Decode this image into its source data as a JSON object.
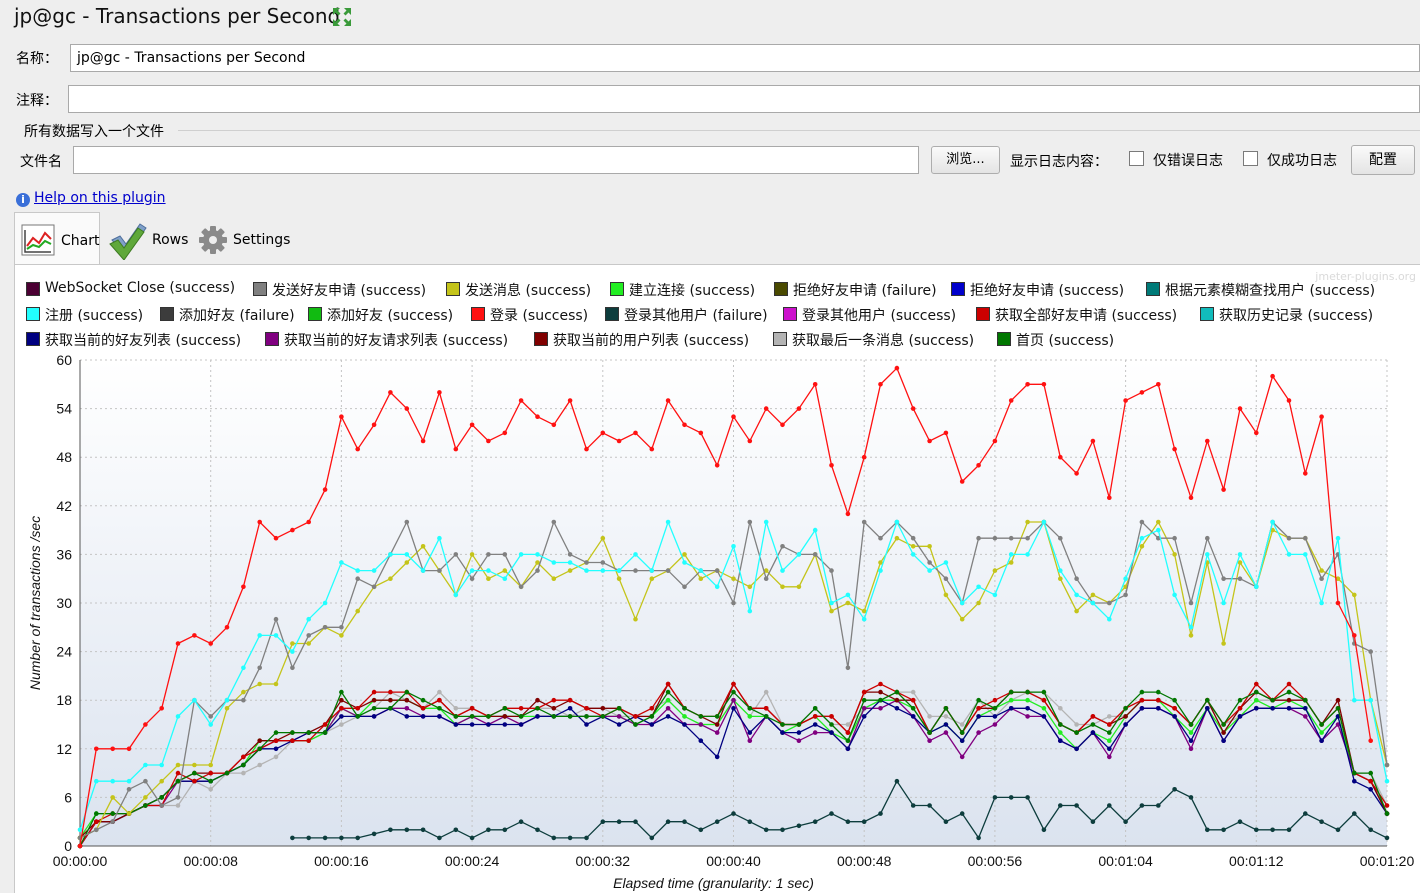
{
  "title": "jp@gc - Transactions per Second",
  "name_label": "名称：",
  "name_value": "jp@gc - Transactions per Second",
  "comment_label": "注释：",
  "comment_value": "",
  "file_group_title": "所有数据写入一个文件",
  "filename_label": "文件名",
  "filename_value": "",
  "browse_button": "浏览...",
  "log_content_label": "显示日志内容：",
  "errors_only_label": "仅错误日志",
  "success_only_label": "仅成功日志",
  "configure_button": "配置",
  "help_link": "Help on this plugin",
  "tabs": [
    {
      "label": "Chart",
      "icon": "chart-icon"
    },
    {
      "label": "Rows",
      "icon": "checkmark-icon"
    },
    {
      "label": "Settings",
      "icon": "gear-icon"
    }
  ],
  "watermark": "jmeter-plugins.org",
  "chart_data": {
    "type": "line",
    "title": "",
    "xlabel": "Elapsed time (granularity: 1 sec)",
    "ylabel": "Number of transactions /sec",
    "ylim": [
      0,
      60
    ],
    "yticks": [
      "0",
      "6",
      "12",
      "18",
      "24",
      "30",
      "36",
      "42",
      "48",
      "54",
      "60"
    ],
    "xlim": [
      0,
      80
    ],
    "xticks": [
      "00:00:00",
      "00:00:08",
      "00:00:16",
      "00:00:24",
      "00:00:32",
      "00:00:40",
      "00:00:48",
      "00:00:56",
      "00:01:04",
      "00:01:12",
      "00:01:20"
    ],
    "legend": [
      {
        "name": "WebSocket Close (success)",
        "color": "#4b0033"
      },
      {
        "name": "发送好友申请 (success)",
        "color": "#808080"
      },
      {
        "name": "发送消息 (success)",
        "color": "#c4c41a"
      },
      {
        "name": "建立连接 (success)",
        "color": "#22ee22"
      },
      {
        "name": "拒绝好友申请 (failure)",
        "color": "#4a4a00"
      },
      {
        "name": "拒绝好友申请 (success)",
        "color": "#0000cc"
      },
      {
        "name": "根据元素模糊查找用户 (success)",
        "color": "#007a78"
      },
      {
        "name": "注册 (success)",
        "color": "#22ffff"
      },
      {
        "name": "添加好友 (failure)",
        "color": "#3c3c3c"
      },
      {
        "name": "添加好友 (success)",
        "color": "#11bb11"
      },
      {
        "name": "登录 (success)",
        "color": "#ff1111"
      },
      {
        "name": "登录其他用户 (failure)",
        "color": "#0d3d3d"
      },
      {
        "name": "登录其他用户 (success)",
        "color": "#cc11cc"
      },
      {
        "name": "获取全部好友申请 (success)",
        "color": "#cc0000"
      },
      {
        "name": "获取历史记录 (success)",
        "color": "#11bbbb"
      },
      {
        "name": "获取当前的好友列表 (success)",
        "color": "#000080"
      },
      {
        "name": "获取当前的好友请求列表 (success)",
        "color": "#800080"
      },
      {
        "name": "获取当前的用户列表 (success)",
        "color": "#800000"
      },
      {
        "name": "获取最后一条消息 (success)",
        "color": "#b4b4b4"
      },
      {
        "name": "首页 (success)",
        "color": "#007700"
      }
    ],
    "series": [
      {
        "name": "登录 (success)",
        "color": "#ff1111",
        "x0": 0,
        "values": [
          0,
          12,
          12,
          12,
          15,
          17,
          25,
          26,
          25,
          27,
          32,
          40,
          38,
          39,
          40,
          44,
          53,
          49,
          52,
          56,
          54,
          50,
          56,
          49,
          52,
          50,
          51,
          55,
          53,
          52,
          55,
          49,
          51,
          50,
          51,
          49,
          55,
          52,
          51,
          47,
          53,
          50,
          54,
          52,
          54,
          57,
          47,
          41,
          48,
          57,
          59,
          54,
          50,
          51,
          45,
          47,
          50,
          55,
          57,
          57,
          48,
          46,
          50,
          43,
          55,
          56,
          57,
          49,
          43,
          50,
          44,
          54,
          51,
          58,
          55,
          46,
          53,
          30,
          26,
          13
        ]
      },
      {
        "name": "注册 (success)",
        "color": "#22ffff",
        "x0": 0,
        "values": [
          2,
          8,
          8,
          8,
          10,
          10,
          16,
          18,
          15,
          18,
          22,
          26,
          26,
          24,
          28,
          30,
          35,
          34,
          34,
          36,
          36,
          34,
          38,
          31,
          34,
          34,
          33,
          36,
          36,
          35,
          35,
          34,
          34,
          34,
          36,
          34,
          40,
          35,
          34,
          32,
          37,
          29,
          40,
          34,
          36,
          39,
          30,
          31,
          28,
          34,
          40,
          36,
          34,
          35,
          30,
          32,
          31,
          36,
          36,
          40,
          34,
          31,
          30,
          28,
          33,
          38,
          39,
          31,
          27,
          36,
          30,
          36,
          32,
          40,
          36,
          36,
          30,
          38,
          18,
          18,
          8
        ]
      },
      {
        "name": "发送好友申请 (success)",
        "color": "#808080",
        "x0": 0,
        "values": [
          1,
          2,
          3,
          7,
          8,
          5,
          6,
          18,
          16,
          18,
          18,
          22,
          28,
          22,
          26,
          27,
          27,
          33,
          32,
          36,
          40,
          34,
          34,
          36,
          33,
          36,
          36,
          32,
          34,
          40,
          36,
          35,
          35,
          34,
          34,
          34,
          34,
          32,
          34,
          34,
          30,
          40,
          33,
          37,
          36,
          36,
          34,
          22,
          40,
          38,
          40,
          38,
          35,
          33,
          30,
          38,
          38,
          38,
          38,
          40,
          38,
          33,
          30,
          30,
          31,
          40,
          38,
          38,
          30,
          38,
          33,
          33,
          32,
          40,
          38,
          38,
          33,
          36,
          25,
          24,
          10
        ]
      },
      {
        "name": "发送消息 (success)",
        "color": "#c4c41a",
        "x0": 0,
        "values": [
          1,
          2,
          6,
          4,
          6,
          8,
          10,
          10,
          10,
          17,
          19,
          20,
          20,
          25,
          25,
          27,
          26,
          29,
          32,
          33,
          35,
          37,
          34,
          31,
          36,
          33,
          34,
          32,
          35,
          33,
          34,
          35,
          38,
          33,
          28,
          33,
          34,
          36,
          33,
          34,
          33,
          32,
          34,
          32,
          32,
          36,
          29,
          30,
          29,
          35,
          38,
          37,
          37,
          31,
          28,
          30,
          34,
          35,
          40,
          40,
          33,
          29,
          31,
          30,
          32,
          37,
          40,
          36,
          26,
          35,
          25,
          35,
          32,
          39,
          38,
          38,
          34,
          33,
          31,
          18,
          10
        ]
      },
      {
        "name": "首页 (success)",
        "color": "#007700",
        "x0": 0,
        "values": [
          0,
          4,
          4,
          4,
          5,
          6,
          8,
          9,
          8,
          9,
          10,
          12,
          14,
          14,
          14,
          14,
          19,
          16,
          17,
          17,
          19,
          18,
          17,
          16,
          16,
          16,
          17,
          16,
          17,
          16,
          16,
          16,
          16,
          17,
          15,
          16,
          19,
          17,
          16,
          16,
          19,
          17,
          16,
          15,
          15,
          17,
          15,
          13,
          18,
          18,
          19,
          17,
          14,
          17,
          14,
          18,
          17,
          19,
          19,
          19,
          15,
          14,
          15,
          14,
          17,
          19,
          19,
          18,
          15,
          18,
          15,
          18,
          19,
          18,
          19,
          18,
          15,
          17,
          9,
          9,
          4
        ]
      },
      {
        "name": "获取全部好友申请 (success)",
        "color": "#cc0000",
        "x0": 0,
        "values": [
          0,
          3,
          4,
          4,
          5,
          5,
          9,
          8,
          9,
          9,
          11,
          12,
          13,
          13,
          13,
          15,
          17,
          17,
          19,
          19,
          19,
          17,
          18,
          16,
          17,
          16,
          17,
          17,
          17,
          18,
          18,
          17,
          16,
          17,
          16,
          17,
          20,
          17,
          16,
          16,
          20,
          17,
          17,
          15,
          15,
          16,
          16,
          14,
          19,
          20,
          19,
          18,
          14,
          17,
          14,
          17,
          18,
          19,
          19,
          18,
          15,
          14,
          16,
          15,
          17,
          18,
          18,
          17,
          15,
          18,
          15,
          17,
          20,
          18,
          20,
          18,
          15,
          17,
          9,
          8,
          5
        ]
      },
      {
        "name": "获取当前的用户列表 (success)",
        "color": "#800000",
        "x0": 0,
        "values": [
          1,
          3,
          3,
          4,
          5,
          6,
          8,
          9,
          9,
          9,
          11,
          13,
          13,
          14,
          14,
          15,
          18,
          17,
          18,
          18,
          18,
          17,
          18,
          16,
          17,
          16,
          16,
          16,
          18,
          17,
          18,
          17,
          17,
          17,
          16,
          16,
          20,
          17,
          16,
          15,
          20,
          17,
          17,
          15,
          15,
          16,
          16,
          14,
          19,
          19,
          18,
          18,
          14,
          17,
          14,
          17,
          17,
          19,
          19,
          18,
          15,
          14,
          16,
          15,
          16,
          18,
          18,
          17,
          15,
          18,
          14,
          17,
          19,
          18,
          18,
          18,
          15,
          18,
          9,
          8,
          4
        ]
      },
      {
        "name": "获取当前的好友列表 (success)",
        "color": "#000080",
        "x0": 0,
        "values": [
          0,
          3,
          3,
          4,
          5,
          6,
          8,
          8,
          8,
          9,
          10,
          12,
          12,
          13,
          14,
          14,
          16,
          16,
          16,
          17,
          16,
          16,
          16,
          15,
          15,
          15,
          15,
          15,
          16,
          16,
          17,
          15,
          16,
          15,
          16,
          15,
          16,
          15,
          13,
          11,
          17,
          14,
          16,
          14,
          14,
          15,
          14,
          12,
          16,
          18,
          17,
          16,
          14,
          15,
          13,
          16,
          16,
          17,
          17,
          16,
          13,
          12,
          14,
          12,
          15,
          17,
          17,
          16,
          13,
          17,
          13,
          16,
          17,
          17,
          17,
          17,
          13,
          16,
          8,
          7,
          4
        ]
      },
      {
        "name": "获取当前的好友请求列表 (success)",
        "color": "#800080",
        "x0": 0,
        "values": [
          0,
          3,
          3,
          4,
          5,
          5,
          8,
          8,
          8,
          9,
          10,
          12,
          13,
          13,
          14,
          14,
          17,
          16,
          16,
          17,
          17,
          16,
          16,
          15,
          16,
          15,
          16,
          15,
          16,
          16,
          16,
          16,
          16,
          16,
          15,
          15,
          17,
          15,
          15,
          14,
          18,
          13,
          16,
          14,
          13,
          14,
          14,
          12,
          17,
          17,
          18,
          16,
          13,
          14,
          11,
          14,
          15,
          17,
          16,
          16,
          13,
          12,
          14,
          11,
          15,
          17,
          17,
          16,
          12,
          17,
          13,
          16,
          17,
          17,
          17,
          16,
          13,
          15,
          9,
          8,
          4
        ]
      },
      {
        "name": "建立连接 (success)",
        "color": "#22ee22",
        "x0": 0,
        "values": [
          1,
          4,
          4,
          4,
          5,
          6,
          8,
          8,
          8,
          9,
          10,
          13,
          13,
          13,
          13,
          14,
          17,
          16,
          18,
          18,
          18,
          17,
          17,
          15,
          16,
          16,
          16,
          16,
          16,
          16,
          16,
          16,
          16,
          16,
          15,
          16,
          18,
          16,
          15,
          15,
          18,
          16,
          16,
          14,
          15,
          16,
          14,
          13,
          17,
          18,
          18,
          17,
          14,
          15,
          13,
          16,
          17,
          18,
          18,
          17,
          14,
          12,
          14,
          13,
          16,
          18,
          18,
          16,
          14,
          17,
          14,
          16,
          18,
          17,
          18,
          17,
          14,
          16,
          9,
          8,
          4
        ]
      },
      {
        "name": "获取最后一条消息 (success)",
        "color": "#b4b4b4",
        "x0": 0,
        "values": [
          1,
          2,
          3,
          4,
          5,
          5,
          5,
          8,
          7,
          9,
          9,
          10,
          11,
          13,
          13,
          14,
          15,
          16,
          17,
          19,
          18,
          17,
          19,
          17,
          17,
          16,
          16,
          16,
          17,
          17,
          16,
          17,
          17,
          16,
          16,
          17,
          18,
          16,
          15,
          15,
          18,
          16,
          19,
          15,
          15,
          17,
          15,
          15,
          17,
          18,
          19,
          19,
          16,
          16,
          15,
          18,
          16,
          18,
          19,
          19,
          17,
          15,
          15,
          16,
          16,
          18,
          18,
          17,
          15,
          18,
          15,
          16,
          18,
          18,
          19,
          18,
          15,
          17,
          9,
          9,
          5
        ]
      },
      {
        "name": "登录其他用户 (failure)",
        "color": "#0d3d3d",
        "x0": 13,
        "values": [
          1,
          1,
          1,
          1,
          1,
          1.5,
          2,
          2,
          2,
          1,
          2,
          1,
          2,
          2,
          3,
          2,
          1,
          1,
          1,
          3,
          3,
          3,
          1,
          3,
          3,
          2,
          3,
          4,
          3,
          2,
          2,
          2.5,
          3,
          4,
          3,
          3,
          4,
          8,
          5,
          5,
          3,
          4,
          1,
          6,
          6,
          6,
          2,
          5,
          5,
          3,
          5,
          3,
          5,
          5,
          7,
          6,
          2,
          2,
          3,
          2,
          2,
          2,
          4,
          3,
          2,
          4,
          2,
          1
        ]
      }
    ]
  }
}
